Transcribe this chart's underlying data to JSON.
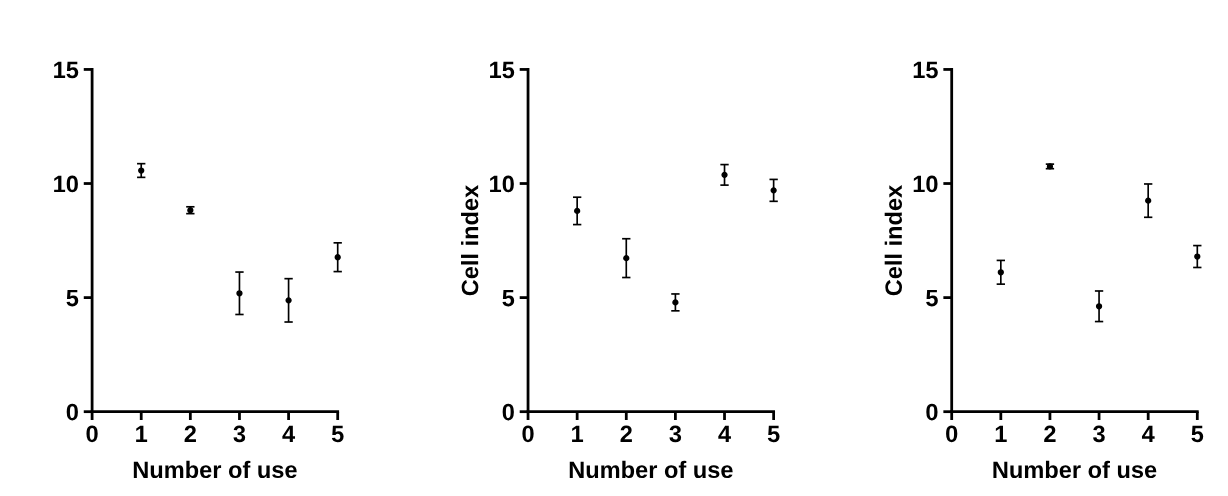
{
  "chart_data": [
    {
      "type": "scatter",
      "xlabel": "Number of use",
      "x": [
        1,
        2,
        3,
        4,
        5
      ],
      "values": [
        10.57,
        8.83,
        5.19,
        4.88,
        6.77
      ],
      "errors": [
        0.3,
        0.15,
        0.93,
        0.95,
        0.63
      ],
      "color": "#000000",
      "marker": "circle",
      "xlim": [
        0,
        5
      ],
      "xticks": [
        0,
        1,
        2,
        3,
        4,
        5
      ],
      "ylim": [
        0,
        15
      ],
      "yticks": [
        0,
        5,
        10,
        15
      ],
      "grid": false,
      "legend": false
    },
    {
      "type": "scatter",
      "xlabel": "Number of use",
      "ylabel": "Cell index",
      "x": [
        1,
        2,
        3,
        4,
        5
      ],
      "values": [
        8.8,
        6.73,
        4.79,
        10.38,
        9.7
      ],
      "errors": [
        0.6,
        0.85,
        0.37,
        0.45,
        0.48
      ],
      "color": "#000000",
      "marker": "circle",
      "xlim": [
        0,
        5
      ],
      "xticks": [
        0,
        1,
        2,
        3,
        4,
        5
      ],
      "ylim": [
        0,
        15
      ],
      "yticks": [
        0,
        5,
        10,
        15
      ],
      "grid": false,
      "legend": false
    },
    {
      "type": "scatter",
      "xlabel": "Number of use",
      "ylabel": "Cell index",
      "x": [
        1,
        2,
        3,
        4,
        5
      ],
      "values": [
        6.11,
        10.75,
        4.62,
        9.25,
        6.8
      ],
      "errors": [
        0.52,
        0.1,
        0.67,
        0.73,
        0.48
      ],
      "color": "#000000",
      "marker": "circle",
      "xlim": [
        0,
        5
      ],
      "xticks": [
        0,
        1,
        2,
        3,
        4,
        5
      ],
      "ylim": [
        0,
        15
      ],
      "yticks": [
        0,
        5,
        10,
        15
      ],
      "grid": false,
      "legend": false
    }
  ]
}
